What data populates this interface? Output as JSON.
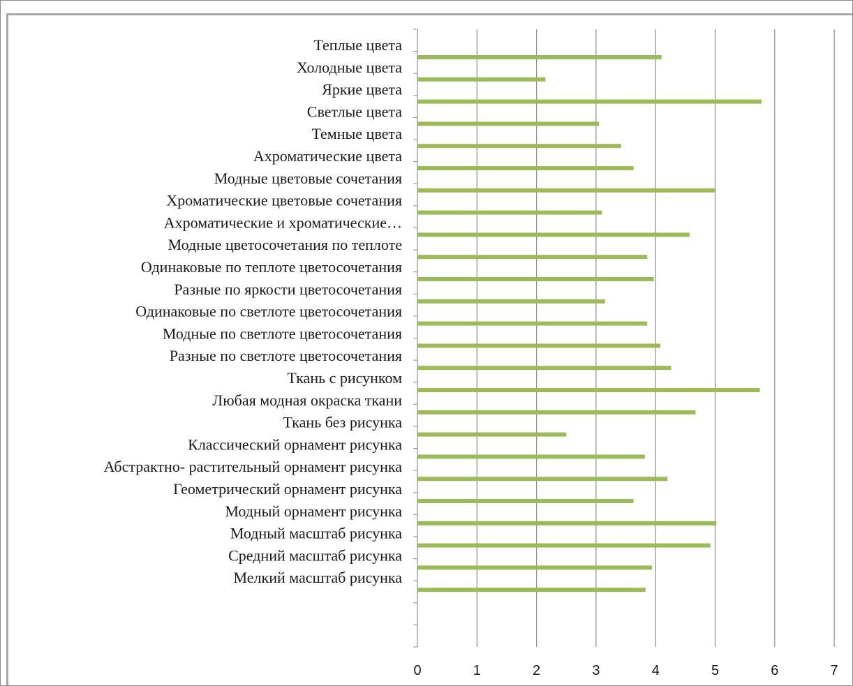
{
  "chart_data": {
    "type": "bar",
    "orientation": "horizontal",
    "categories": [
      "Теплые цвета",
      "Холодные цвета",
      "Яркие цвета",
      "Светлые цвета",
      "Темные цвета",
      "Ахроматические цвета",
      "Модные цветовые сочетания",
      "Хроматические цветовые сочетания",
      "Ахроматические и хроматические…",
      "Модные цветосочетания по теплоте",
      "Одинаковые по теплоте цветосочетания",
      "Разные по яркости цветосочетания",
      "Одинаковые по светлоте цветосочетания",
      "Модные по светлоте цветосочетания",
      "Разные по светлоте цветосочетания",
      "Ткань с рисунком",
      "Любая модная окраска ткани",
      "Ткань без рисунка",
      "Классический орнамент рисунка",
      "Абстрактно- растительный орнамент рисунка",
      "Геометрический орнамент рисунка",
      "Модный орнамент рисунка",
      "Модный масштаб рисунка",
      "Средний масштаб рисунка",
      "Мелкий масштаб рисунка"
    ],
    "values": [
      4.1,
      2.15,
      5.78,
      3.05,
      3.42,
      3.63,
      5.0,
      3.1,
      4.57,
      3.86,
      3.97,
      3.15,
      3.86,
      4.08,
      4.26,
      5.75,
      4.67,
      2.5,
      3.82,
      4.2,
      3.63,
      5.02,
      4.92,
      3.94,
      3.83
    ],
    "xlim": [
      0,
      7
    ],
    "x_ticks": [
      "0",
      "1",
      "2",
      "3",
      "4",
      "5",
      "6",
      "7"
    ],
    "grid": "vertical",
    "bar_color": "#9bbb59",
    "grid_color": "#8c8c8c",
    "title": "",
    "xlabel": "",
    "ylabel": ""
  }
}
